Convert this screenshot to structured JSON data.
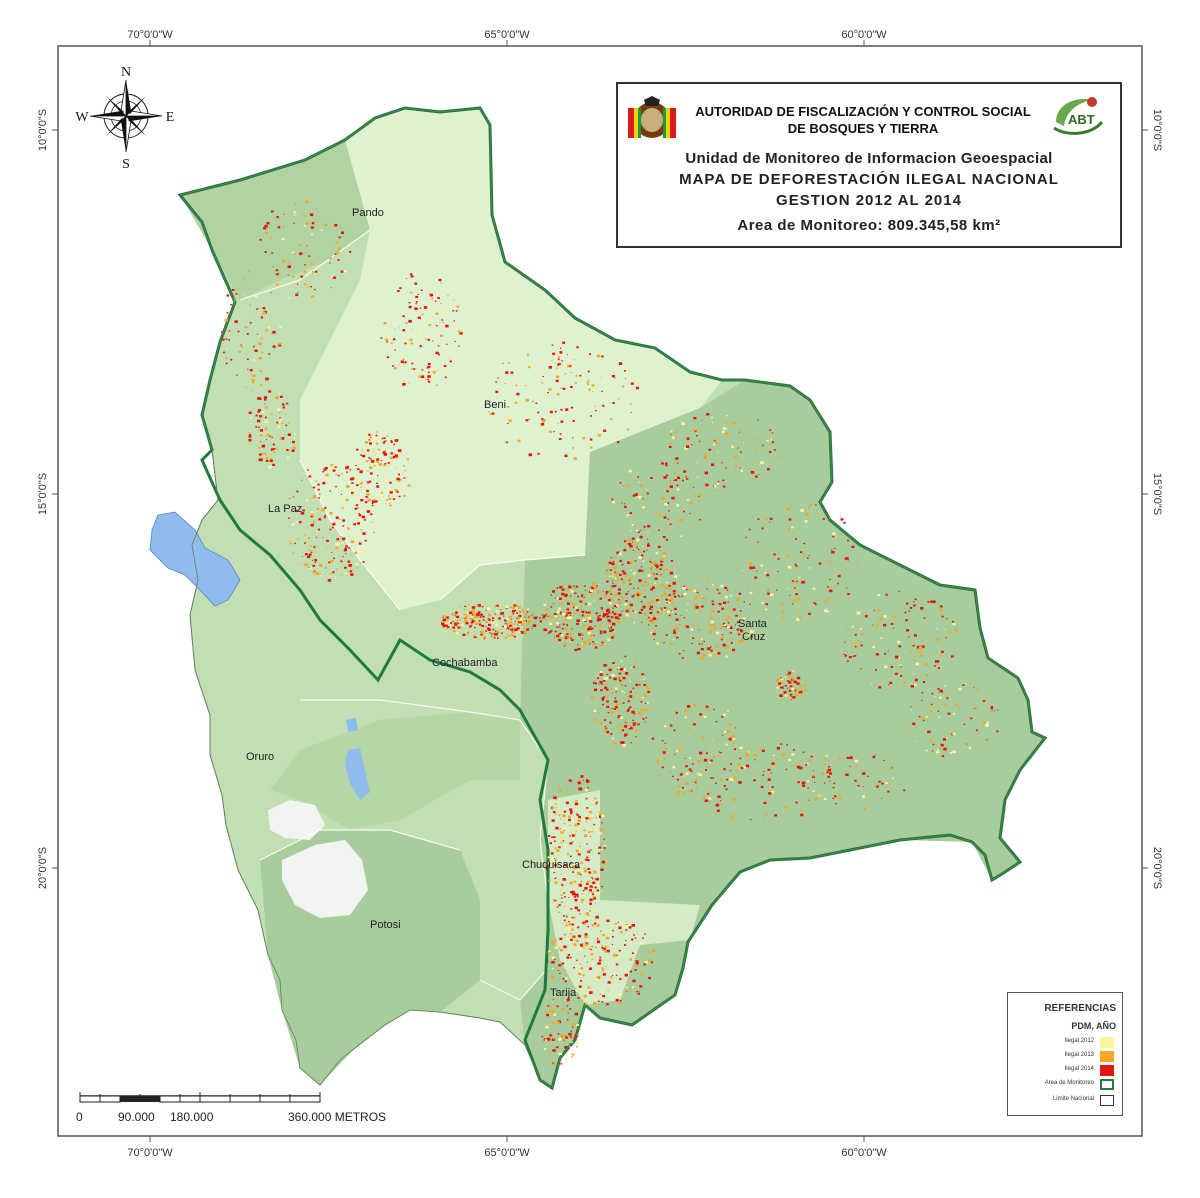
{
  "coords": {
    "top": [
      "70°0'0\"W",
      "65°0'0\"W",
      "60°0'0\"W"
    ],
    "bottom": [
      "70°0'0\"W",
      "65°0'0\"W",
      "60°0'0\"W"
    ],
    "left": [
      "10°0'0\"S",
      "15°0'0\"S",
      "20°0'0\"S"
    ],
    "right": [
      "10°0'0\"S",
      "15°0'0\"S",
      "20°0'0\"S"
    ]
  },
  "compass": {
    "n": "N",
    "s": "S",
    "e": "E",
    "w": "W"
  },
  "title": {
    "org_line1": "AUTORIDAD DE FISCALIZACIÓN Y CONTROL SOCIAL",
    "org_line2": "DE BOSQUES Y TIERRA",
    "unit": "Unidad de Monitoreo de Informacion Geoespacial",
    "map_title": "MAPA DE DEFORESTACIÓN ILEGAL NACIONAL",
    "period": "GESTION 2012 AL 2014",
    "area": "Area de Monitoreo: 809.345,58 km²",
    "abt_logo": "ABT"
  },
  "departments": {
    "pando": "Pando",
    "beni": "Beni",
    "lapaz": "La Paz",
    "santacruz_1": "Santa",
    "santacruz_2": "Cruz",
    "cochabamba": "Cochabamba",
    "oruro": "Oruro",
    "potosi": "Potosi",
    "chuquisaca": "Chuquisaca",
    "tarija": "Tarija"
  },
  "legend": {
    "title": "REFERENCIAS",
    "subtitle": "PDM, AÑO",
    "items": [
      {
        "label": "Ilegal 2012",
        "color": "#fff59a"
      },
      {
        "label": "Ilegal 2013",
        "color": "#f5a623"
      },
      {
        "label": "Ilegal 2014",
        "color": "#e3160e"
      },
      {
        "label": "Area de Monitoreo",
        "color": "#1f7a3e"
      },
      {
        "label": "Limite Nacional",
        "color": "#333333"
      }
    ]
  },
  "scale": {
    "ticks": [
      "0",
      "90.000",
      "180.000",
      "360.000 METROS"
    ]
  },
  "colors": {
    "forest_dark": "#a9cc9c",
    "forest_mid": "#c2deb3",
    "forest_light": "#dff2cf",
    "border_green": "#1f7a3e",
    "lake": "#8fbcec",
    "salt": "#f2f4f2"
  }
}
